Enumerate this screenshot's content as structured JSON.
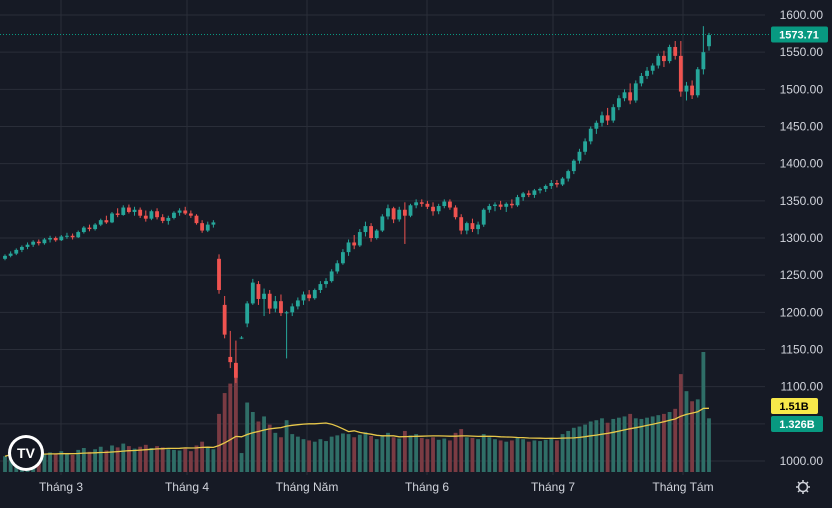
{
  "chart_data": {
    "type": "candlestick",
    "y_axis": {
      "min": 1000,
      "max": 1600,
      "ticks": [
        1000,
        1050,
        1100,
        1150,
        1200,
        1250,
        1300,
        1350,
        1400,
        1450,
        1500,
        1550,
        1600
      ],
      "tick_labels": [
        "1000.00",
        "1050.00",
        "1100.00",
        "1150.00",
        "1200.00",
        "1250.00",
        "1300.00",
        "1350.00",
        "1400.00",
        "1450.00",
        "1500.00",
        "1550.00",
        "1600.00"
      ]
    },
    "x_axis": {
      "labels": [
        "Tháng 3",
        "Tháng 4",
        "Tháng Năm",
        "Tháng 6",
        "Tháng 7",
        "Tháng Tám"
      ]
    },
    "last_price": {
      "value": 1573.71,
      "label": "1573.71",
      "color": "#089981"
    },
    "volume_badges": [
      {
        "label": "1.51B",
        "color": "#f7e84a",
        "text_color": "#000000"
      },
      {
        "label": "1.326B",
        "color": "#089981",
        "text_color": "#ffffff"
      }
    ],
    "colors": {
      "up": "#26a69a",
      "down": "#ef5350",
      "vol_up": "#2f6e67",
      "vol_down": "#7a3b43",
      "ma": "#e8c84a",
      "background": "#161a25",
      "grid": "#2a2e39"
    },
    "logo_text": "TV",
    "candles": [
      [
        1272,
        1278,
        1270,
        1276,
        25
      ],
      [
        1276,
        1282,
        1274,
        1279,
        30
      ],
      [
        1279,
        1286,
        1277,
        1284,
        28
      ],
      [
        1284,
        1290,
        1281,
        1288,
        32
      ],
      [
        1288,
        1294,
        1285,
        1291,
        27
      ],
      [
        1291,
        1297,
        1288,
        1295,
        30
      ],
      [
        1295,
        1298,
        1290,
        1293,
        26
      ],
      [
        1293,
        1300,
        1291,
        1298,
        29
      ],
      [
        1298,
        1303,
        1294,
        1300,
        31
      ],
      [
        1300,
        1302,
        1295,
        1297,
        28
      ],
      [
        1297,
        1304,
        1296,
        1302,
        33
      ],
      [
        1302,
        1307,
        1299,
        1303,
        30
      ],
      [
        1303,
        1306,
        1298,
        1301,
        27
      ],
      [
        1301,
        1310,
        1300,
        1308,
        35
      ],
      [
        1308,
        1316,
        1306,
        1314,
        38
      ],
      [
        1314,
        1318,
        1309,
        1312,
        32
      ],
      [
        1312,
        1320,
        1310,
        1318,
        36
      ],
      [
        1318,
        1326,
        1316,
        1324,
        40
      ],
      [
        1324,
        1330,
        1319,
        1321,
        34
      ],
      [
        1321,
        1335,
        1320,
        1333,
        42
      ],
      [
        1333,
        1340,
        1328,
        1331,
        39
      ],
      [
        1331,
        1344,
        1330,
        1341,
        45
      ],
      [
        1341,
        1345,
        1333,
        1335,
        41
      ],
      [
        1335,
        1342,
        1330,
        1338,
        37
      ],
      [
        1338,
        1341,
        1327,
        1330,
        40
      ],
      [
        1330,
        1337,
        1322,
        1326,
        43
      ],
      [
        1326,
        1338,
        1324,
        1336,
        38
      ],
      [
        1336,
        1340,
        1325,
        1328,
        41
      ],
      [
        1328,
        1332,
        1320,
        1323,
        39
      ],
      [
        1323,
        1330,
        1318,
        1327,
        36
      ],
      [
        1327,
        1336,
        1325,
        1334,
        35
      ],
      [
        1334,
        1340,
        1330,
        1337,
        34
      ],
      [
        1337,
        1342,
        1331,
        1333,
        37
      ],
      [
        1333,
        1337,
        1327,
        1330,
        33
      ],
      [
        1330,
        1332,
        1318,
        1320,
        42
      ],
      [
        1320,
        1324,
        1307,
        1310,
        48
      ],
      [
        1310,
        1322,
        1308,
        1318,
        40
      ],
      [
        1318,
        1324,
        1314,
        1321,
        36
      ],
      [
        1272,
        1278,
        1225,
        1230,
        92
      ],
      [
        1210,
        1222,
        1165,
        1170,
        125
      ],
      [
        1140,
        1175,
        1125,
        1133,
        140
      ],
      [
        1132,
        1162,
        1105,
        1112,
        150
      ],
      [
        1166,
        1168,
        1164,
        1166,
        30
      ],
      [
        1185,
        1215,
        1180,
        1212,
        110
      ],
      [
        1212,
        1245,
        1210,
        1240,
        95
      ],
      [
        1238,
        1242,
        1210,
        1218,
        80
      ],
      [
        1218,
        1232,
        1195,
        1225,
        88
      ],
      [
        1225,
        1230,
        1198,
        1205,
        75
      ],
      [
        1205,
        1222,
        1200,
        1215,
        62
      ],
      [
        1215,
        1224,
        1195,
        1199,
        55
      ],
      [
        1199,
        1202,
        1138,
        1200,
        82
      ],
      [
        1200,
        1212,
        1195,
        1208,
        60
      ],
      [
        1208,
        1220,
        1204,
        1216,
        56
      ],
      [
        1216,
        1228,
        1210,
        1224,
        52
      ],
      [
        1224,
        1230,
        1215,
        1219,
        50
      ],
      [
        1219,
        1232,
        1217,
        1230,
        48
      ],
      [
        1230,
        1242,
        1226,
        1238,
        52
      ],
      [
        1238,
        1246,
        1233,
        1242,
        49
      ],
      [
        1242,
        1258,
        1240,
        1255,
        56
      ],
      [
        1255,
        1270,
        1252,
        1266,
        58
      ],
      [
        1266,
        1285,
        1264,
        1281,
        61
      ],
      [
        1281,
        1298,
        1276,
        1294,
        60
      ],
      [
        1294,
        1304,
        1285,
        1290,
        55
      ],
      [
        1290,
        1312,
        1288,
        1308,
        59
      ],
      [
        1308,
        1322,
        1302,
        1316,
        63
      ],
      [
        1316,
        1320,
        1295,
        1300,
        57
      ],
      [
        1300,
        1312,
        1298,
        1310,
        52
      ],
      [
        1310,
        1332,
        1308,
        1329,
        58
      ],
      [
        1329,
        1345,
        1325,
        1340,
        62
      ],
      [
        1340,
        1342,
        1320,
        1325,
        55
      ],
      [
        1325,
        1342,
        1322,
        1338,
        53
      ],
      [
        1338,
        1348,
        1292,
        1330,
        65
      ],
      [
        1330,
        1346,
        1328,
        1344,
        58
      ],
      [
        1344,
        1352,
        1340,
        1348,
        60
      ],
      [
        1348,
        1352,
        1342,
        1346,
        54
      ],
      [
        1346,
        1350,
        1339,
        1342,
        52
      ],
      [
        1342,
        1348,
        1330,
        1336,
        55
      ],
      [
        1336,
        1346,
        1332,
        1343,
        51
      ],
      [
        1343,
        1352,
        1340,
        1349,
        53
      ],
      [
        1349,
        1352,
        1338,
        1341,
        50
      ],
      [
        1341,
        1344,
        1325,
        1328,
        62
      ],
      [
        1328,
        1332,
        1305,
        1310,
        68
      ],
      [
        1310,
        1322,
        1305,
        1320,
        55
      ],
      [
        1320,
        1326,
        1308,
        1312,
        54
      ],
      [
        1312,
        1322,
        1305,
        1318,
        52
      ],
      [
        1318,
        1340,
        1315,
        1338,
        60
      ],
      [
        1338,
        1346,
        1334,
        1343,
        55
      ],
      [
        1343,
        1348,
        1336,
        1345,
        52
      ],
      [
        1345,
        1350,
        1338,
        1342,
        50
      ],
      [
        1342,
        1348,
        1335,
        1346,
        48
      ],
      [
        1346,
        1352,
        1340,
        1344,
        50
      ],
      [
        1344,
        1358,
        1342,
        1355,
        55
      ],
      [
        1355,
        1362,
        1350,
        1360,
        52
      ],
      [
        1360,
        1364,
        1355,
        1358,
        48
      ],
      [
        1358,
        1366,
        1354,
        1364,
        50
      ],
      [
        1364,
        1368,
        1360,
        1366,
        49
      ],
      [
        1366,
        1372,
        1362,
        1370,
        51
      ],
      [
        1370,
        1378,
        1366,
        1374,
        53
      ],
      [
        1374,
        1378,
        1368,
        1372,
        50
      ],
      [
        1372,
        1382,
        1370,
        1380,
        60
      ],
      [
        1380,
        1392,
        1376,
        1390,
        65
      ],
      [
        1390,
        1406,
        1386,
        1404,
        70
      ],
      [
        1404,
        1420,
        1400,
        1416,
        72
      ],
      [
        1416,
        1434,
        1412,
        1430,
        75
      ],
      [
        1430,
        1450,
        1426,
        1447,
        80
      ],
      [
        1447,
        1458,
        1440,
        1455,
        82
      ],
      [
        1455,
        1470,
        1450,
        1465,
        85
      ],
      [
        1465,
        1475,
        1452,
        1458,
        78
      ],
      [
        1458,
        1480,
        1455,
        1476,
        84
      ],
      [
        1476,
        1492,
        1472,
        1488,
        86
      ],
      [
        1488,
        1500,
        1484,
        1496,
        88
      ],
      [
        1496,
        1508,
        1480,
        1485,
        92
      ],
      [
        1485,
        1512,
        1482,
        1508,
        85
      ],
      [
        1508,
        1522,
        1504,
        1518,
        84
      ],
      [
        1518,
        1530,
        1514,
        1525,
        86
      ],
      [
        1525,
        1535,
        1520,
        1532,
        88
      ],
      [
        1532,
        1548,
        1528,
        1545,
        90
      ],
      [
        1545,
        1552,
        1530,
        1538,
        92
      ],
      [
        1538,
        1560,
        1535,
        1557,
        95
      ],
      [
        1557,
        1565,
        1540,
        1545,
        100
      ],
      [
        1545,
        1565,
        1490,
        1497,
        155
      ],
      [
        1497,
        1510,
        1485,
        1505,
        128
      ],
      [
        1505,
        1512,
        1487,
        1492,
        112
      ],
      [
        1492,
        1530,
        1489,
        1527,
        115
      ],
      [
        1527,
        1585,
        1520,
        1550,
        190
      ],
      [
        1558,
        1576,
        1552,
        1573,
        85
      ]
    ]
  }
}
